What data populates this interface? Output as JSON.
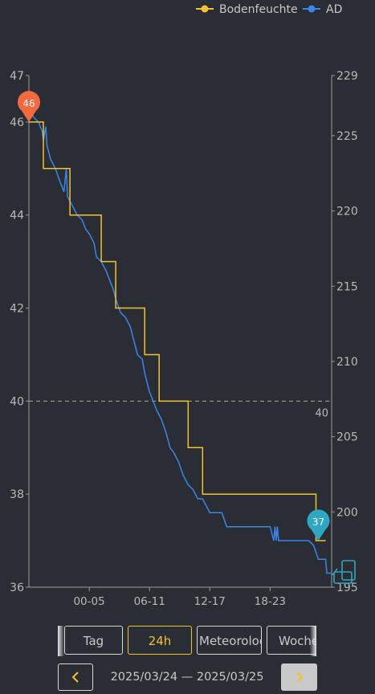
{
  "chart_data": {
    "type": "line",
    "legend": {
      "position": "top-right"
    },
    "x_ticks": [
      "00-05",
      "06-11",
      "12-17",
      "18-23"
    ],
    "left_axis": {
      "ylim": [
        36,
        47
      ],
      "ticks": [
        36,
        38,
        40,
        42,
        44,
        46,
        47
      ]
    },
    "right_axis": {
      "ylim": [
        195,
        229
      ],
      "ticks": [
        195,
        200,
        205,
        210,
        215,
        220,
        225,
        229
      ]
    },
    "reference_line": {
      "axis": "right",
      "value": 40,
      "label": "40"
    },
    "series": [
      {
        "name": "Bodenfeuchte",
        "axis": "left",
        "color": "#f2c230",
        "step": true,
        "points": [
          [
            0,
            46
          ],
          [
            0.6,
            46
          ],
          [
            0.6,
            45
          ],
          [
            1.7,
            45
          ],
          [
            1.7,
            44
          ],
          [
            3.0,
            44
          ],
          [
            3.0,
            43
          ],
          [
            3.6,
            43
          ],
          [
            3.6,
            42
          ],
          [
            4.8,
            42
          ],
          [
            4.8,
            41
          ],
          [
            5.4,
            41
          ],
          [
            5.4,
            40
          ],
          [
            6.6,
            40
          ],
          [
            6.6,
            39
          ],
          [
            7.2,
            39
          ],
          [
            7.2,
            38
          ],
          [
            11.9,
            38
          ],
          [
            11.9,
            37
          ],
          [
            12.3,
            37
          ]
        ]
      },
      {
        "name": "AD",
        "axis": "left",
        "color": "#3a86e8",
        "step": false,
        "points": [
          [
            0,
            46.3
          ],
          [
            0.2,
            46.1
          ],
          [
            0.4,
            46.0
          ],
          [
            0.55,
            45.8
          ],
          [
            0.6,
            45.6
          ],
          [
            0.7,
            45.9
          ],
          [
            0.75,
            45.5
          ],
          [
            0.9,
            45.2
          ],
          [
            1.1,
            45.0
          ],
          [
            1.3,
            44.7
          ],
          [
            1.45,
            44.5
          ],
          [
            1.55,
            45.0
          ],
          [
            1.6,
            44.4
          ],
          [
            1.8,
            44.2
          ],
          [
            2.0,
            44.0
          ],
          [
            2.2,
            43.9
          ],
          [
            2.35,
            43.7
          ],
          [
            2.5,
            43.6
          ],
          [
            2.7,
            43.4
          ],
          [
            2.8,
            43.1
          ],
          [
            3.0,
            43.0
          ],
          [
            3.2,
            42.8
          ],
          [
            3.35,
            42.6
          ],
          [
            3.5,
            42.4
          ],
          [
            3.6,
            42.2
          ],
          [
            3.8,
            41.9
          ],
          [
            4.0,
            41.8
          ],
          [
            4.2,
            41.6
          ],
          [
            4.35,
            41.3
          ],
          [
            4.5,
            41.0
          ],
          [
            4.7,
            40.9
          ],
          [
            4.8,
            40.6
          ],
          [
            5.0,
            40.2
          ],
          [
            5.15,
            40.0
          ],
          [
            5.3,
            39.8
          ],
          [
            5.5,
            39.6
          ],
          [
            5.7,
            39.3
          ],
          [
            5.85,
            39.0
          ],
          [
            6.0,
            38.9
          ],
          [
            6.2,
            38.7
          ],
          [
            6.4,
            38.4
          ],
          [
            6.6,
            38.2
          ],
          [
            6.8,
            38.1
          ],
          [
            7.0,
            37.9
          ],
          [
            7.2,
            37.9
          ],
          [
            7.5,
            37.6
          ],
          [
            8.0,
            37.6
          ],
          [
            8.2,
            37.3
          ],
          [
            10.0,
            37.3
          ],
          [
            10.15,
            37.0
          ],
          [
            10.2,
            37.3
          ],
          [
            10.25,
            37.0
          ],
          [
            10.3,
            37.3
          ],
          [
            10.35,
            37.0
          ],
          [
            11.6,
            37.0
          ],
          [
            11.8,
            36.9
          ],
          [
            12.0,
            36.6
          ],
          [
            12.3,
            36.6
          ],
          [
            12.35,
            36.3
          ],
          [
            12.55,
            36.3
          ]
        ]
      }
    ],
    "markers": [
      {
        "label": "46",
        "series": "Bodenfeuchte",
        "x": 0,
        "y": 46,
        "color": "#f46a3e"
      },
      {
        "label": "37",
        "series": "AD",
        "x": 12.0,
        "y": 37,
        "color": "#2fa7c3"
      }
    ]
  },
  "tabs": [
    {
      "label": "Tag",
      "active": false
    },
    {
      "label": "24h",
      "active": true
    },
    {
      "label": "Meteorolog",
      "active": false
    },
    {
      "label": "Woche",
      "active": false
    }
  ],
  "date_range": "2025/03/24 — 2025/03/25",
  "nav": {
    "prev_icon": "chevron-left-icon",
    "next_icon": "chevron-right-icon"
  },
  "chart_icon": "data-layers-icon"
}
